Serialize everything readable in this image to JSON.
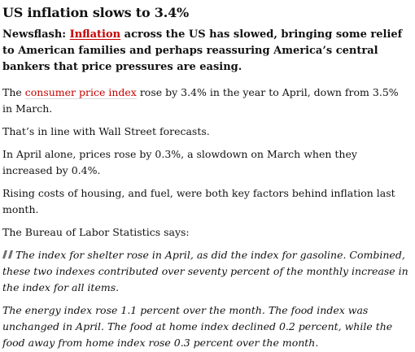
{
  "article": {
    "headline": "US inflation slows to 3.4%",
    "standfirst": {
      "prefix": "Newsflash: ",
      "link_text": "Inflation",
      "suffix": " across the US has slowed, bringing some relief to American families and perhaps reassuring America’s central bankers that price pressures are easing."
    },
    "p1": {
      "prefix": "The ",
      "link_text": "consumer price index",
      "suffix": " rose by 3.4% in the year to April, down from 3.5% in March."
    },
    "p2": "That’s in line with Wall Street forecasts.",
    "p3": "In April alone, prices rose by 0.3%, a slowdown on March when they increased by 0.4%.",
    "p4": "Rising costs of housing, and fuel, were both key factors behind inflation last month.",
    "p5": "The Bureau of Labor Statistics says:",
    "quote1": "The index for shelter rose in April, as did the index for gasoline. Combined, these two indexes contributed over seventy percent of the monthly increase in the index for all items.",
    "quote2": "The energy index rose 1.1 percent over the month. The food index was unchanged in April. The food at home index declined 0.2 percent, while the food away from home index rose 0.3 percent over the month.",
    "quote_icon": "quote-mark-icon",
    "colors": {
      "link": "#c70000",
      "text": "#121212",
      "quote_icon": "#707070"
    }
  }
}
